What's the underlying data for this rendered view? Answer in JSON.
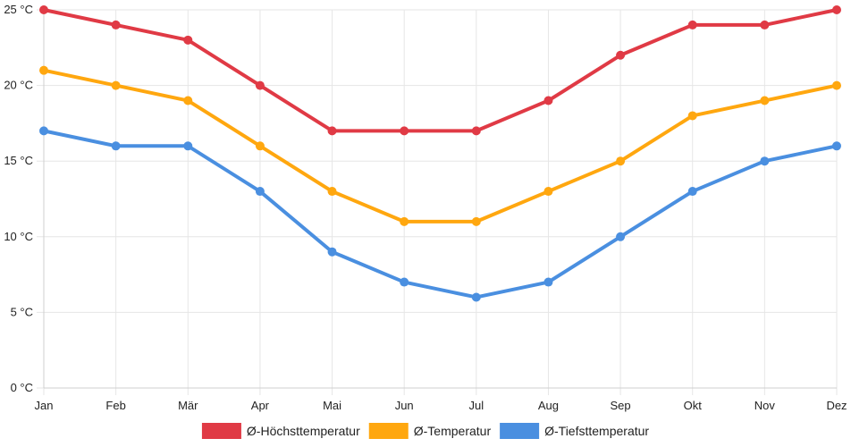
{
  "chart_data": {
    "type": "line",
    "categories": [
      "Jan",
      "Feb",
      "Mär",
      "Apr",
      "Mai",
      "Jun",
      "Jul",
      "Aug",
      "Sep",
      "Okt",
      "Nov",
      "Dez"
    ],
    "y_ticks": [
      "0 °C",
      "5 °C",
      "10 °C",
      "15 °C",
      "20 °C",
      "25 °C"
    ],
    "ylim": [
      0,
      25
    ],
    "grid": true,
    "legend_position": "bottom",
    "series": [
      {
        "name": "Ø-Höchsttemperatur",
        "color": "#e03a45",
        "values": [
          25,
          24,
          23,
          20,
          17,
          17,
          17,
          19,
          22,
          24,
          24,
          25
        ]
      },
      {
        "name": "Ø-Temperatur",
        "color": "#ffa70f",
        "values": [
          21,
          20,
          19,
          16,
          13,
          11,
          11,
          13,
          15,
          18,
          19,
          20
        ]
      },
      {
        "name": "Ø-Tiefsttemperatur",
        "color": "#4a8fe0",
        "values": [
          17,
          16,
          16,
          13,
          9,
          7,
          6,
          7,
          10,
          13,
          15,
          16
        ]
      }
    ]
  }
}
